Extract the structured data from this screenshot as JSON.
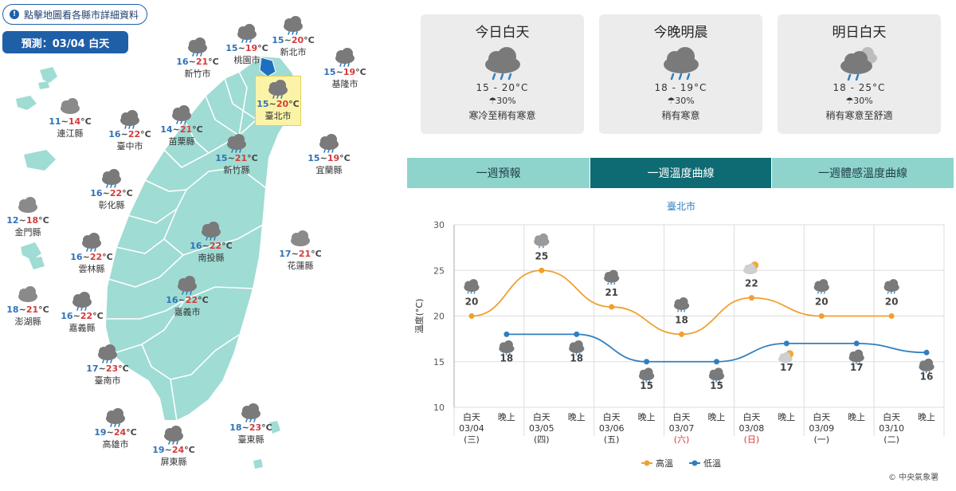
{
  "map": {
    "hint": "點擊地圖看各縣市詳細資料",
    "forecast_date": "預測：03/04 白天",
    "colors": {
      "land": "#9fdcd3",
      "border": "#ffffff",
      "highlight": "#fbf3a8",
      "lo": "#2f73b8",
      "hi": "#d63a3a"
    },
    "cities": [
      {
        "name": "桃園市",
        "lo": "15",
        "hi": "19",
        "icon": "rain-icon"
      },
      {
        "name": "新北市",
        "lo": "15",
        "hi": "20",
        "icon": "rain-icon"
      },
      {
        "name": "新竹市",
        "lo": "16",
        "hi": "21",
        "icon": "rain-icon"
      },
      {
        "name": "基隆市",
        "lo": "15",
        "hi": "19",
        "icon": "rain-icon"
      },
      {
        "name": "臺北市",
        "lo": "15",
        "hi": "20",
        "icon": "rain-icon",
        "highlight": true
      },
      {
        "name": "連江縣",
        "lo": "11",
        "hi": "14",
        "icon": "cloudy-icon"
      },
      {
        "name": "臺中市",
        "lo": "16",
        "hi": "22",
        "icon": "rain-icon"
      },
      {
        "name": "苗栗縣",
        "lo": "14",
        "hi": "21",
        "icon": "rain-icon"
      },
      {
        "name": "新竹縣",
        "lo": "15",
        "hi": "21",
        "icon": "rain-icon"
      },
      {
        "name": "宜蘭縣",
        "lo": "15",
        "hi": "19",
        "icon": "rain-icon"
      },
      {
        "name": "彰化縣",
        "lo": "16",
        "hi": "22",
        "icon": "rain-icon"
      },
      {
        "name": "金門縣",
        "lo": "12",
        "hi": "18",
        "icon": "cloudy-icon"
      },
      {
        "name": "南投縣",
        "lo": "16",
        "hi": "22",
        "icon": "rain-icon"
      },
      {
        "name": "花蓮縣",
        "lo": "17",
        "hi": "21",
        "icon": "cloudy-icon"
      },
      {
        "name": "雲林縣",
        "lo": "16",
        "hi": "22",
        "icon": "rain-icon"
      },
      {
        "name": "嘉義市",
        "lo": "16",
        "hi": "22",
        "icon": "rain-icon"
      },
      {
        "name": "澎湖縣",
        "lo": "18",
        "hi": "21",
        "icon": "cloudy-icon"
      },
      {
        "name": "嘉義縣",
        "lo": "16",
        "hi": "22",
        "icon": "rain-icon"
      },
      {
        "name": "臺南市",
        "lo": "17",
        "hi": "23",
        "icon": "rain-icon"
      },
      {
        "name": "高雄市",
        "lo": "19",
        "hi": "24",
        "icon": "rain-icon"
      },
      {
        "name": "屏東縣",
        "lo": "19",
        "hi": "24",
        "icon": "rain-icon"
      },
      {
        "name": "臺東縣",
        "lo": "18",
        "hi": "23",
        "icon": "rain-icon"
      }
    ]
  },
  "cards": [
    {
      "title": "今日白天",
      "icon": "rain-icon",
      "temp": "15 - 20°C",
      "pop": "☂30%",
      "desc": "寒冷至稍有寒意"
    },
    {
      "title": "今晚明晨",
      "icon": "rain-icon",
      "temp": "18 - 19°C",
      "pop": "☂30%",
      "desc": "稍有寒意"
    },
    {
      "title": "明日白天",
      "icon": "rain-cloud-icon",
      "temp": "18 - 25°C",
      "pop": "☂30%",
      "desc": "稍有寒意至舒適"
    }
  ],
  "tabs": [
    {
      "label": "一週預報",
      "active": false
    },
    {
      "label": "一週溫度曲線",
      "active": true
    },
    {
      "label": "一週體感溫度曲線",
      "active": false
    }
  ],
  "colors": {
    "tab_bg": "#8fd4cc",
    "tab_active": "#0e6b73",
    "high": "#f0a030",
    "low": "#2f7fc0",
    "card_bg": "#ececec"
  },
  "chart_data": {
    "type": "line",
    "title": "臺北市",
    "ylabel": "溫度(°C)",
    "ylim": [
      10,
      30
    ],
    "yticks": [
      10,
      15,
      20,
      25,
      30
    ],
    "categories": [
      {
        "period": "白天",
        "date": "03/04",
        "weekday": "(三)"
      },
      {
        "period": "晚上",
        "date": "",
        "weekday": ""
      },
      {
        "period": "白天",
        "date": "03/05",
        "weekday": "(四)"
      },
      {
        "period": "晚上",
        "date": "",
        "weekday": ""
      },
      {
        "period": "白天",
        "date": "03/06",
        "weekday": "(五)"
      },
      {
        "period": "晚上",
        "date": "",
        "weekday": ""
      },
      {
        "period": "白天",
        "date": "03/07",
        "weekday": "(六)",
        "weekend": true
      },
      {
        "period": "晚上",
        "date": "",
        "weekday": ""
      },
      {
        "period": "白天",
        "date": "03/08",
        "weekday": "(日)",
        "weekend": true
      },
      {
        "period": "晚上",
        "date": "",
        "weekday": ""
      },
      {
        "period": "白天",
        "date": "03/09",
        "weekday": "(一)"
      },
      {
        "period": "晚上",
        "date": "",
        "weekday": ""
      },
      {
        "period": "白天",
        "date": "03/10",
        "weekday": "(二)"
      },
      {
        "period": "晚上",
        "date": "",
        "weekday": ""
      }
    ],
    "series": [
      {
        "name": "高溫",
        "values": [
          20,
          null,
          25,
          null,
          21,
          null,
          18,
          null,
          22,
          null,
          20,
          null,
          20,
          null
        ],
        "icons": [
          "rain-icon",
          null,
          "cloudy-icon",
          null,
          "rain-icon",
          null,
          "rain-icon",
          null,
          "sun-cloud-icon",
          null,
          "rain-icon",
          null,
          "rain-icon",
          null
        ]
      },
      {
        "name": "低溫",
        "values": [
          null,
          18,
          null,
          18,
          null,
          15,
          null,
          15,
          null,
          17,
          null,
          17,
          null,
          16
        ],
        "icons": [
          null,
          "rain-icon",
          null,
          "rain-icon",
          null,
          "rain-icon",
          null,
          "rain-icon",
          null,
          "sun-cloud-icon",
          null,
          "rain-icon",
          null,
          "rain-icon"
        ]
      }
    ],
    "legend": [
      "高溫",
      "低溫"
    ],
    "legend_position": "bottom",
    "grid": true,
    "copyright": "© 中央氣象署"
  }
}
